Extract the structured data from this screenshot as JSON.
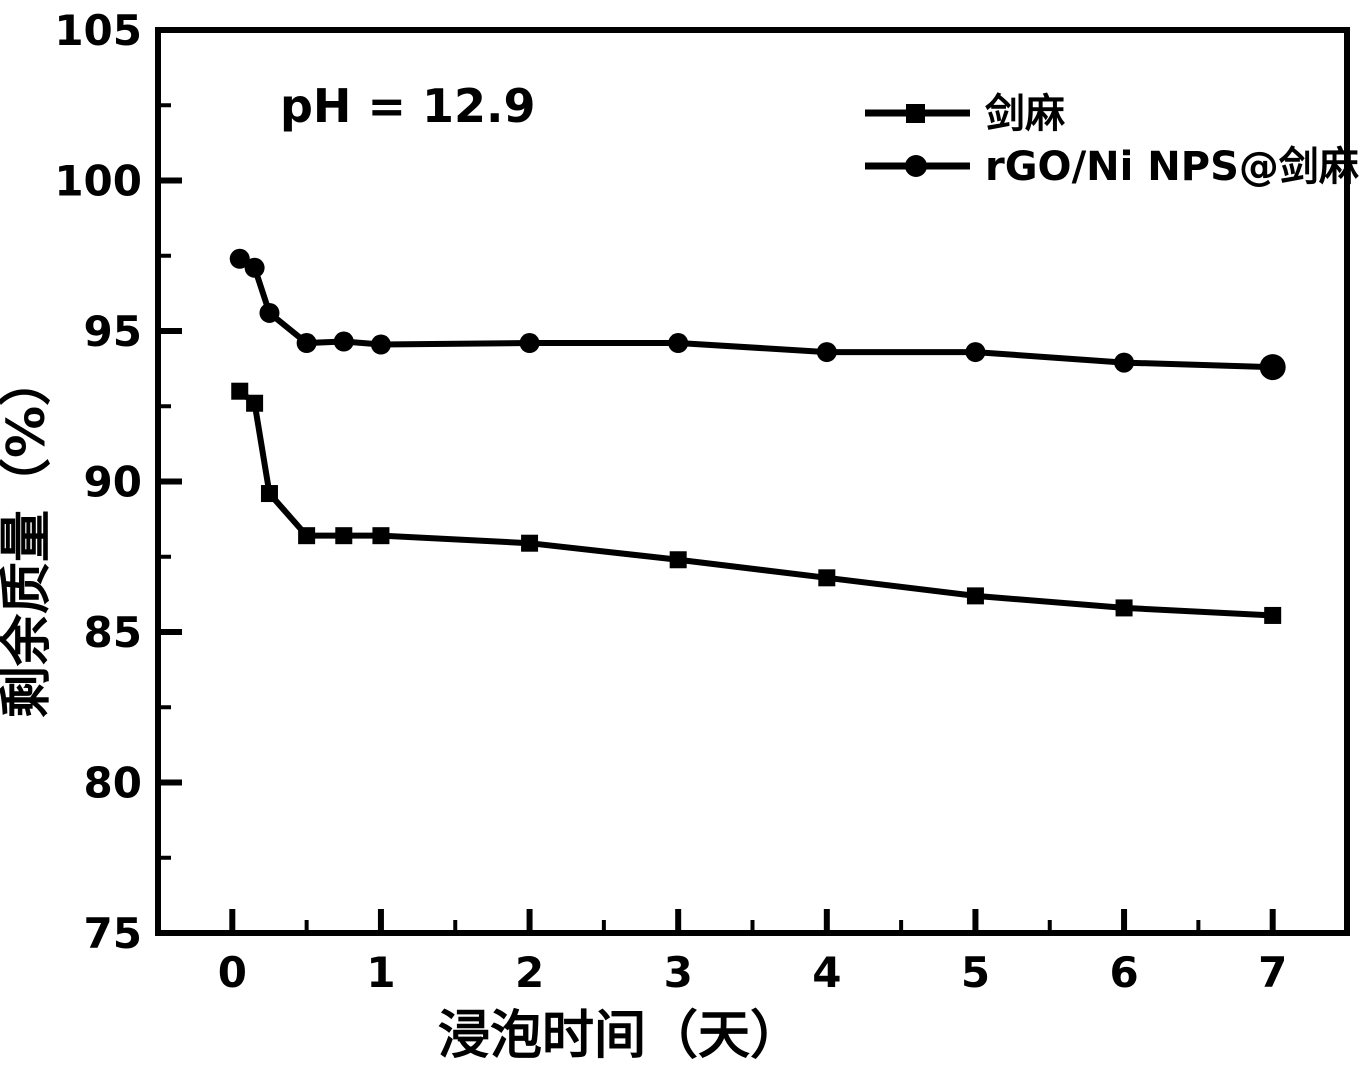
{
  "figure": {
    "background": "#ffffff",
    "ink_color": "#000000"
  },
  "chart_data": {
    "type": "line",
    "title": "",
    "xlabel": "浸泡时间（天）",
    "ylabel": "剩余质量（%）",
    "annotation": "pH = 12.9",
    "xlim": [
      -0.5,
      7.5
    ],
    "ylim": [
      75,
      105
    ],
    "x_major_ticks": [
      0,
      1,
      2,
      3,
      4,
      5,
      6,
      7
    ],
    "x_minor_step": 0.5,
    "y_major_ticks": [
      75,
      80,
      85,
      90,
      95,
      100,
      105
    ],
    "y_minor_step": 2.5,
    "grid": false,
    "legend_position": "upper-right",
    "x": [
      0.05,
      0.15,
      0.25,
      0.5,
      0.75,
      1,
      2,
      3,
      4,
      5,
      6,
      7
    ],
    "series": [
      {
        "name": "剑麻",
        "marker": "square",
        "color": "#000000",
        "values": [
          93.0,
          92.6,
          89.6,
          88.2,
          88.2,
          88.2,
          87.95,
          87.4,
          86.8,
          86.2,
          85.8,
          85.55
        ]
      },
      {
        "name": "rGO/Ni NPS@剑麻",
        "marker": "circle",
        "color": "#000000",
        "values": [
          97.4,
          97.1,
          95.6,
          94.6,
          94.65,
          94.55,
          94.6,
          94.6,
          94.3,
          94.3,
          93.95,
          93.8
        ]
      }
    ]
  }
}
